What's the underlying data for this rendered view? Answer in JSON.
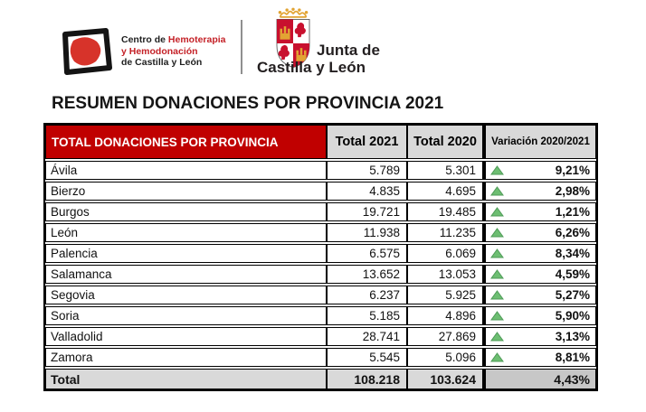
{
  "title": "RESUMEN DONACIONES POR PROVINCIA 2021",
  "header": {
    "left_logo": {
      "line1_black": "Centro de ",
      "line1_red": "Hemoterapia",
      "line2": "y Hemodonación",
      "line3": "de Castilla y León"
    },
    "right_logo": {
      "line1": "Junta de",
      "line2": "Castilla y León"
    }
  },
  "table": {
    "columns": [
      "TOTAL DONACIONES POR PROVINCIA",
      "Total 2021",
      "Total 2020",
      "Variación 2020/2021"
    ],
    "rows": [
      {
        "province": "Ávila",
        "total_2021": "5.789",
        "total_2020": "5.301",
        "trend": "up",
        "variation": "9,21%"
      },
      {
        "province": "Bierzo",
        "total_2021": "4.835",
        "total_2020": "4.695",
        "trend": "up",
        "variation": "2,98%"
      },
      {
        "province": "Burgos",
        "total_2021": "19.721",
        "total_2020": "19.485",
        "trend": "up",
        "variation": "1,21%"
      },
      {
        "province": "León",
        "total_2021": "11.938",
        "total_2020": "11.235",
        "trend": "up",
        "variation": "6,26%"
      },
      {
        "province": "Palencia",
        "total_2021": "6.575",
        "total_2020": "6.069",
        "trend": "up",
        "variation": "8,34%"
      },
      {
        "province": "Salamanca",
        "total_2021": "13.652",
        "total_2020": "13.053",
        "trend": "up",
        "variation": "4,59%"
      },
      {
        "province": "Segovia",
        "total_2021": "6.237",
        "total_2020": "5.925",
        "trend": "up",
        "variation": "5,27%"
      },
      {
        "province": "Soria",
        "total_2021": "5.185",
        "total_2020": "4.896",
        "trend": "up",
        "variation": "5,90%"
      },
      {
        "province": "Valladolid",
        "total_2021": "28.741",
        "total_2020": "27.869",
        "trend": "up",
        "variation": "3,13%"
      },
      {
        "province": "Zamora",
        "total_2021": "5.545",
        "total_2020": "5.096",
        "trend": "up",
        "variation": "8,81%"
      }
    ],
    "total_row": {
      "label": "Total",
      "total_2021": "108.218",
      "total_2020": "103.624",
      "variation": "4,43%"
    }
  },
  "colors": {
    "accent_red": "#C00000",
    "header_gray": "#D9D9D9",
    "total_gray": "#D9D9D9",
    "total_variation_gray": "#C7C7C7",
    "trend_up_fill": "#6DBE72",
    "trend_up_stroke": "#4E9B57",
    "logo_red": "#D7332A",
    "arms_red": "#C8102E",
    "arms_gold": "#E2A433"
  }
}
